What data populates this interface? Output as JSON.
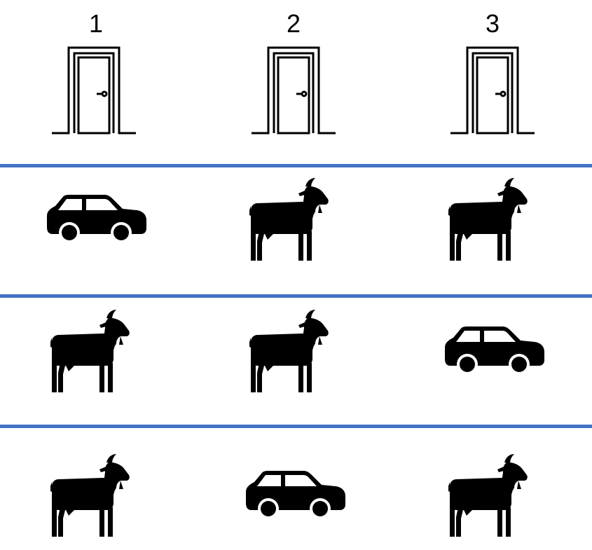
{
  "doors": [
    {
      "number": "1"
    },
    {
      "number": "2"
    },
    {
      "number": "3"
    }
  ],
  "scenarios": [
    [
      "car",
      "goat",
      "goat"
    ],
    [
      "goat",
      "goat",
      "car"
    ],
    [
      "goat",
      "car",
      "goat"
    ]
  ],
  "colors": {
    "separator": "#4472C4",
    "ink": "#000000",
    "background": "#ffffff"
  },
  "icons": {
    "door": "door-icon",
    "car": "car-icon",
    "goat": "goat-icon"
  }
}
